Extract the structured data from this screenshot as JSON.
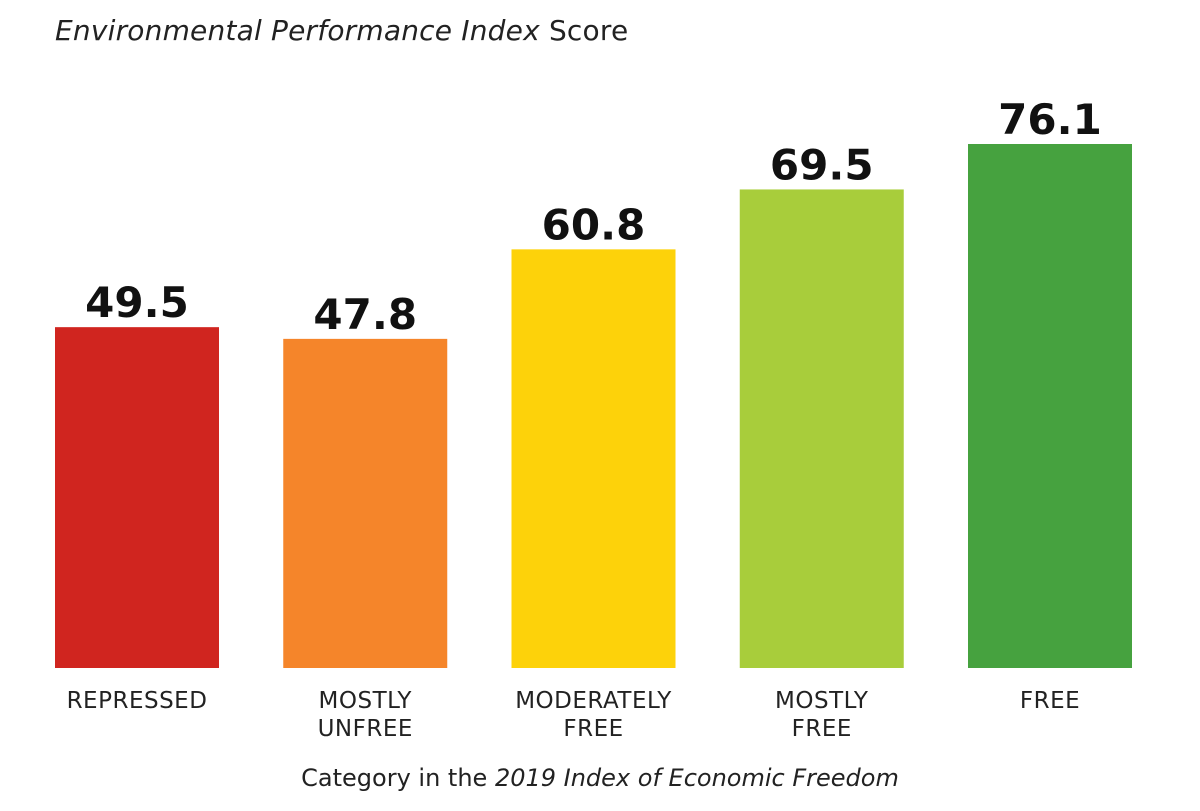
{
  "chart_data": {
    "type": "bar",
    "title": {
      "italic": "Environmental Performance Index",
      "normal": " Score"
    },
    "xlabel": {
      "normal": "Category in the ",
      "italic": "2019 Index of Economic Freedom"
    },
    "ylabel": "",
    "categories": [
      [
        "REPRESSED"
      ],
      [
        "MOSTLY",
        "UNFREE"
      ],
      [
        "MODERATELY",
        "FREE"
      ],
      [
        "MOSTLY",
        "FREE"
      ],
      [
        "FREE"
      ]
    ],
    "values": [
      49.5,
      47.8,
      60.8,
      69.5,
      76.1
    ],
    "value_labels": [
      "49.5",
      "47.8",
      "60.8",
      "69.5",
      "76.1"
    ],
    "colors": [
      "#d0251f",
      "#f5852a",
      "#fdd20a",
      "#a8cd3b",
      "#46a23f"
    ],
    "ylim": [
      0,
      76.1
    ],
    "grid": false,
    "legend": "none"
  }
}
